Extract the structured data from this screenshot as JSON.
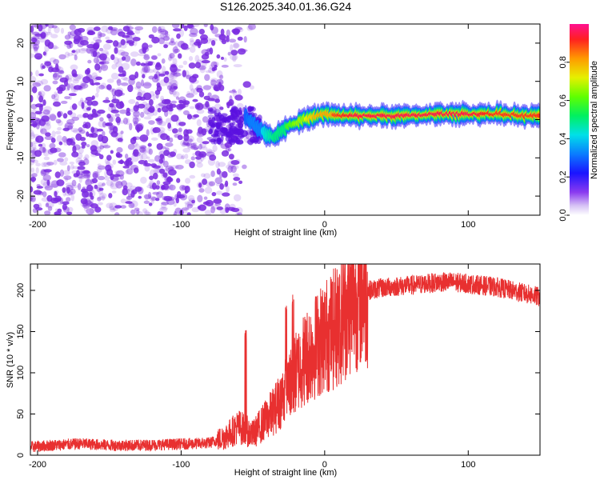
{
  "title": "S126.2025.340.01.36.G24",
  "colors": {
    "snr_line": "#e83030",
    "noise_dots": "#7a2ae0",
    "frame": "#000000"
  },
  "chart_data": [
    {
      "type": "heatmap",
      "name": "spectrogram",
      "xlabel": "Height of straight line (km)",
      "ylabel": "Frequency (Hz)",
      "xlim": [
        -205,
        150
      ],
      "ylim": [
        -25,
        25
      ],
      "xticks": [
        -200,
        -100,
        0,
        100
      ],
      "yticks": [
        -20,
        -10,
        0,
        10,
        20
      ],
      "colorbar": {
        "label": "Normalized spectral amplitude",
        "range": [
          0,
          1
        ],
        "ticks": [
          0.0,
          0.2,
          0.4,
          0.6,
          0.8
        ],
        "tick_labels": [
          "0.0",
          "0.2",
          "0.4",
          "0.6",
          "0.8"
        ]
      },
      "signal_ridge": {
        "height_km": [
          -55,
          -50,
          -45,
          -40,
          -35,
          -30,
          -25,
          -20,
          -15,
          -10,
          -5,
          0,
          10,
          20,
          40,
          60,
          80,
          100,
          120,
          140,
          150
        ],
        "frequency_hz": [
          0.5,
          -1.0,
          -2.5,
          -4.0,
          -4.5,
          -3.0,
          -1.5,
          -1.0,
          0.0,
          0.5,
          1.0,
          1.5,
          1.0,
          1.0,
          1.0,
          1.0,
          1.5,
          1.5,
          1.5,
          1.0,
          1.0
        ],
        "amplitude": [
          0.3,
          0.35,
          0.4,
          0.45,
          0.5,
          0.55,
          0.6,
          0.65,
          0.7,
          0.75,
          0.8,
          0.85,
          0.9,
          0.95,
          0.95,
          0.95,
          0.95,
          0.95,
          0.9,
          0.9,
          0.9
        ]
      },
      "noise_region_km": [
        -205,
        -50
      ]
    },
    {
      "type": "line",
      "name": "snr",
      "xlabel": "Height of straight line (km)",
      "ylabel": "SNR (10 * v/v)",
      "xlim": [
        -205,
        150
      ],
      "ylim": [
        0,
        232
      ],
      "xticks": [
        -200,
        -100,
        0,
        100
      ],
      "yticks": [
        0,
        50,
        100,
        150,
        200
      ],
      "series": [
        {
          "name": "SNR",
          "x": [
            -205,
            -190,
            -170,
            -150,
            -130,
            -110,
            -90,
            -80,
            -75,
            -70,
            -65,
            -60,
            -55,
            -50,
            -45,
            -40,
            -35,
            -30,
            -25,
            -20,
            -15,
            -10,
            -5,
            0,
            5,
            10,
            15,
            20,
            25,
            30,
            40,
            50,
            60,
            70,
            80,
            90,
            100,
            110,
            120,
            130,
            140,
            150
          ],
          "y": [
            10,
            12,
            14,
            12,
            12,
            13,
            14,
            15,
            18,
            22,
            28,
            35,
            30,
            25,
            35,
            45,
            55,
            70,
            85,
            100,
            115,
            125,
            135,
            145,
            150,
            160,
            175,
            190,
            198,
            200,
            203,
            205,
            206,
            208,
            210,
            210,
            208,
            206,
            204,
            200,
            196,
            192
          ]
        }
      ],
      "spikes": {
        "x": [
          -55,
          -22,
          -27,
          10
        ],
        "y": [
          158,
          205,
          182,
          232
        ]
      }
    }
  ]
}
